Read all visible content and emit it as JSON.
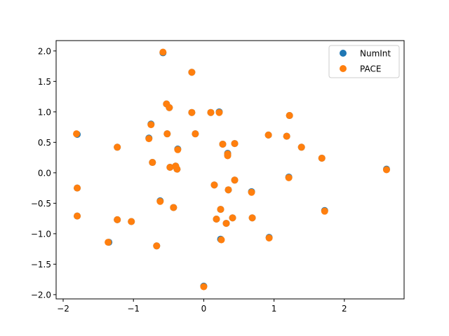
{
  "chart_data": {
    "type": "scatter",
    "title": "",
    "xlabel": "",
    "ylabel": "",
    "xlim": [
      -2.1,
      2.85
    ],
    "ylim": [
      -2.07,
      2.17
    ],
    "xticks": [
      -2,
      -1,
      0,
      1,
      2
    ],
    "yticks": [
      -2.0,
      -1.5,
      -1.0,
      -0.5,
      0.0,
      0.5,
      1.0,
      1.5,
      2.0
    ],
    "xtick_labels": [
      "−2",
      "−1",
      "0",
      "1",
      "2"
    ],
    "ytick_labels": [
      "−2.0",
      "−1.5",
      "−1.0",
      "−0.5",
      "0.0",
      "0.5",
      "1.0",
      "1.5",
      "2.0"
    ],
    "grid": false,
    "legend_position": "top-right",
    "series": [
      {
        "name": "NumInt",
        "color": "#1f77b4",
        "points": [
          [
            -1.8,
            0.63
          ],
          [
            -1.8,
            -0.25
          ],
          [
            -1.8,
            -0.71
          ],
          [
            -1.23,
            0.42
          ],
          [
            -1.23,
            -0.77
          ],
          [
            -1.35,
            -1.14
          ],
          [
            -1.03,
            -0.8
          ],
          [
            -0.78,
            0.57
          ],
          [
            -0.75,
            0.8
          ],
          [
            -0.73,
            0.17
          ],
          [
            -0.67,
            -1.2
          ],
          [
            -0.62,
            -0.46
          ],
          [
            -0.58,
            1.97
          ],
          [
            -0.53,
            1.13
          ],
          [
            -0.52,
            0.64
          ],
          [
            -0.49,
            1.07
          ],
          [
            -0.48,
            0.09
          ],
          [
            -0.43,
            -0.57
          ],
          [
            -0.4,
            0.11
          ],
          [
            -0.37,
            0.39
          ],
          [
            -0.38,
            0.06
          ],
          [
            -0.17,
            1.65
          ],
          [
            -0.17,
            0.99
          ],
          [
            -0.12,
            0.64
          ],
          [
            0.0,
            -1.86
          ],
          [
            0.1,
            0.99
          ],
          [
            0.15,
            -0.2
          ],
          [
            0.18,
            -0.76
          ],
          [
            0.22,
            1.0
          ],
          [
            0.24,
            -0.6
          ],
          [
            0.24,
            -1.09
          ],
          [
            0.27,
            0.47
          ],
          [
            0.32,
            -0.83
          ],
          [
            0.34,
            0.32
          ],
          [
            0.34,
            0.29
          ],
          [
            0.35,
            -0.28
          ],
          [
            0.41,
            -0.74
          ],
          [
            0.44,
            0.48
          ],
          [
            0.44,
            -0.12
          ],
          [
            0.68,
            -0.31
          ],
          [
            0.69,
            -0.74
          ],
          [
            0.92,
            0.62
          ],
          [
            0.93,
            -1.06
          ],
          [
            1.18,
            0.6
          ],
          [
            1.21,
            -0.07
          ],
          [
            1.22,
            0.94
          ],
          [
            1.39,
            0.42
          ],
          [
            1.68,
            0.24
          ],
          [
            1.72,
            -0.62
          ],
          [
            2.6,
            0.06
          ]
        ]
      },
      {
        "name": "PACE",
        "color": "#ff7f0e",
        "points": [
          [
            -1.81,
            0.64
          ],
          [
            -1.8,
            -0.25
          ],
          [
            -1.8,
            -0.71
          ],
          [
            -1.23,
            0.42
          ],
          [
            -1.23,
            -0.77
          ],
          [
            -1.36,
            -1.14
          ],
          [
            -1.03,
            -0.8
          ],
          [
            -0.78,
            0.56
          ],
          [
            -0.75,
            0.79
          ],
          [
            -0.73,
            0.17
          ],
          [
            -0.67,
            -1.2
          ],
          [
            -0.62,
            -0.47
          ],
          [
            -0.58,
            1.98
          ],
          [
            -0.53,
            1.13
          ],
          [
            -0.52,
            0.64
          ],
          [
            -0.49,
            1.07
          ],
          [
            -0.48,
            0.09
          ],
          [
            -0.43,
            -0.57
          ],
          [
            -0.4,
            0.11
          ],
          [
            -0.37,
            0.38
          ],
          [
            -0.38,
            0.06
          ],
          [
            -0.17,
            1.65
          ],
          [
            -0.17,
            0.99
          ],
          [
            -0.12,
            0.64
          ],
          [
            0.0,
            -1.87
          ],
          [
            0.1,
            0.99
          ],
          [
            0.15,
            -0.2
          ],
          [
            0.18,
            -0.76
          ],
          [
            0.22,
            0.99
          ],
          [
            0.24,
            -0.6
          ],
          [
            0.25,
            -1.1
          ],
          [
            0.27,
            0.47
          ],
          [
            0.32,
            -0.83
          ],
          [
            0.34,
            0.31
          ],
          [
            0.34,
            0.28
          ],
          [
            0.35,
            -0.28
          ],
          [
            0.41,
            -0.74
          ],
          [
            0.44,
            0.48
          ],
          [
            0.44,
            -0.12
          ],
          [
            0.68,
            -0.32
          ],
          [
            0.69,
            -0.74
          ],
          [
            0.92,
            0.62
          ],
          [
            0.93,
            -1.07
          ],
          [
            1.18,
            0.6
          ],
          [
            1.21,
            -0.08
          ],
          [
            1.22,
            0.94
          ],
          [
            1.39,
            0.42
          ],
          [
            1.68,
            0.24
          ],
          [
            1.72,
            -0.63
          ],
          [
            2.6,
            0.05
          ]
        ]
      }
    ]
  }
}
